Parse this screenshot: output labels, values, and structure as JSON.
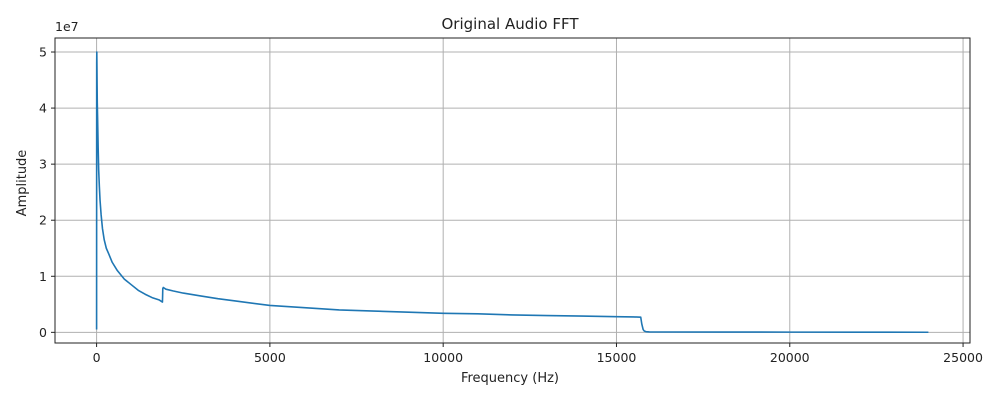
{
  "chart_data": {
    "type": "line",
    "title": "Original Audio FFT",
    "xlabel": "Frequency (Hz)",
    "ylabel": "Amplitude",
    "y_scale_label": "1e7",
    "xlim": [
      -1200,
      25200
    ],
    "ylim": [
      -1900000,
      52500000
    ],
    "x_ticks": [
      0,
      5000,
      10000,
      15000,
      20000,
      25000
    ],
    "x_tick_labels": [
      "0",
      "5000",
      "10000",
      "15000",
      "20000",
      "25000"
    ],
    "y_ticks": [
      0,
      10000000,
      20000000,
      30000000,
      40000000,
      50000000
    ],
    "y_tick_labels": [
      "0",
      "1",
      "2",
      "3",
      "4",
      "5"
    ],
    "grid": true,
    "series": [
      {
        "color": "#1f77b4",
        "x": [
          0,
          3,
          6,
          10,
          15,
          20,
          30,
          45,
          60,
          80,
          100,
          130,
          170,
          220,
          280,
          350,
          450,
          600,
          800,
          1000,
          1200,
          1400,
          1600,
          1800,
          1900,
          1905,
          1910,
          1925,
          2000,
          2200,
          2500,
          3000,
          3500,
          4000,
          5000,
          6000,
          7000,
          8000,
          9000,
          10000,
          11000,
          12000,
          13000,
          14000,
          15000,
          15500,
          15700,
          15730,
          15770,
          15800,
          15850,
          15950,
          16100,
          18000,
          20000,
          22000,
          24000
        ],
        "y": [
          500000,
          48000000,
          50000000,
          47500000,
          44000000,
          41000000,
          38000000,
          33000000,
          29000000,
          26000000,
          23500000,
          21000000,
          18500000,
          16500000,
          15000000,
          14000000,
          12500000,
          11000000,
          9500000,
          8500000,
          7500000,
          6800000,
          6200000,
          5800000,
          5400000,
          6500000,
          7800000,
          8000000,
          7700000,
          7400000,
          7000000,
          6500000,
          6000000,
          5600000,
          4800000,
          4400000,
          4000000,
          3800000,
          3600000,
          3400000,
          3300000,
          3100000,
          3000000,
          2900000,
          2800000,
          2750000,
          2700000,
          1500000,
          500000,
          250000,
          120000,
          80000,
          60000,
          50000,
          40000,
          30000,
          20000
        ]
      }
    ]
  }
}
